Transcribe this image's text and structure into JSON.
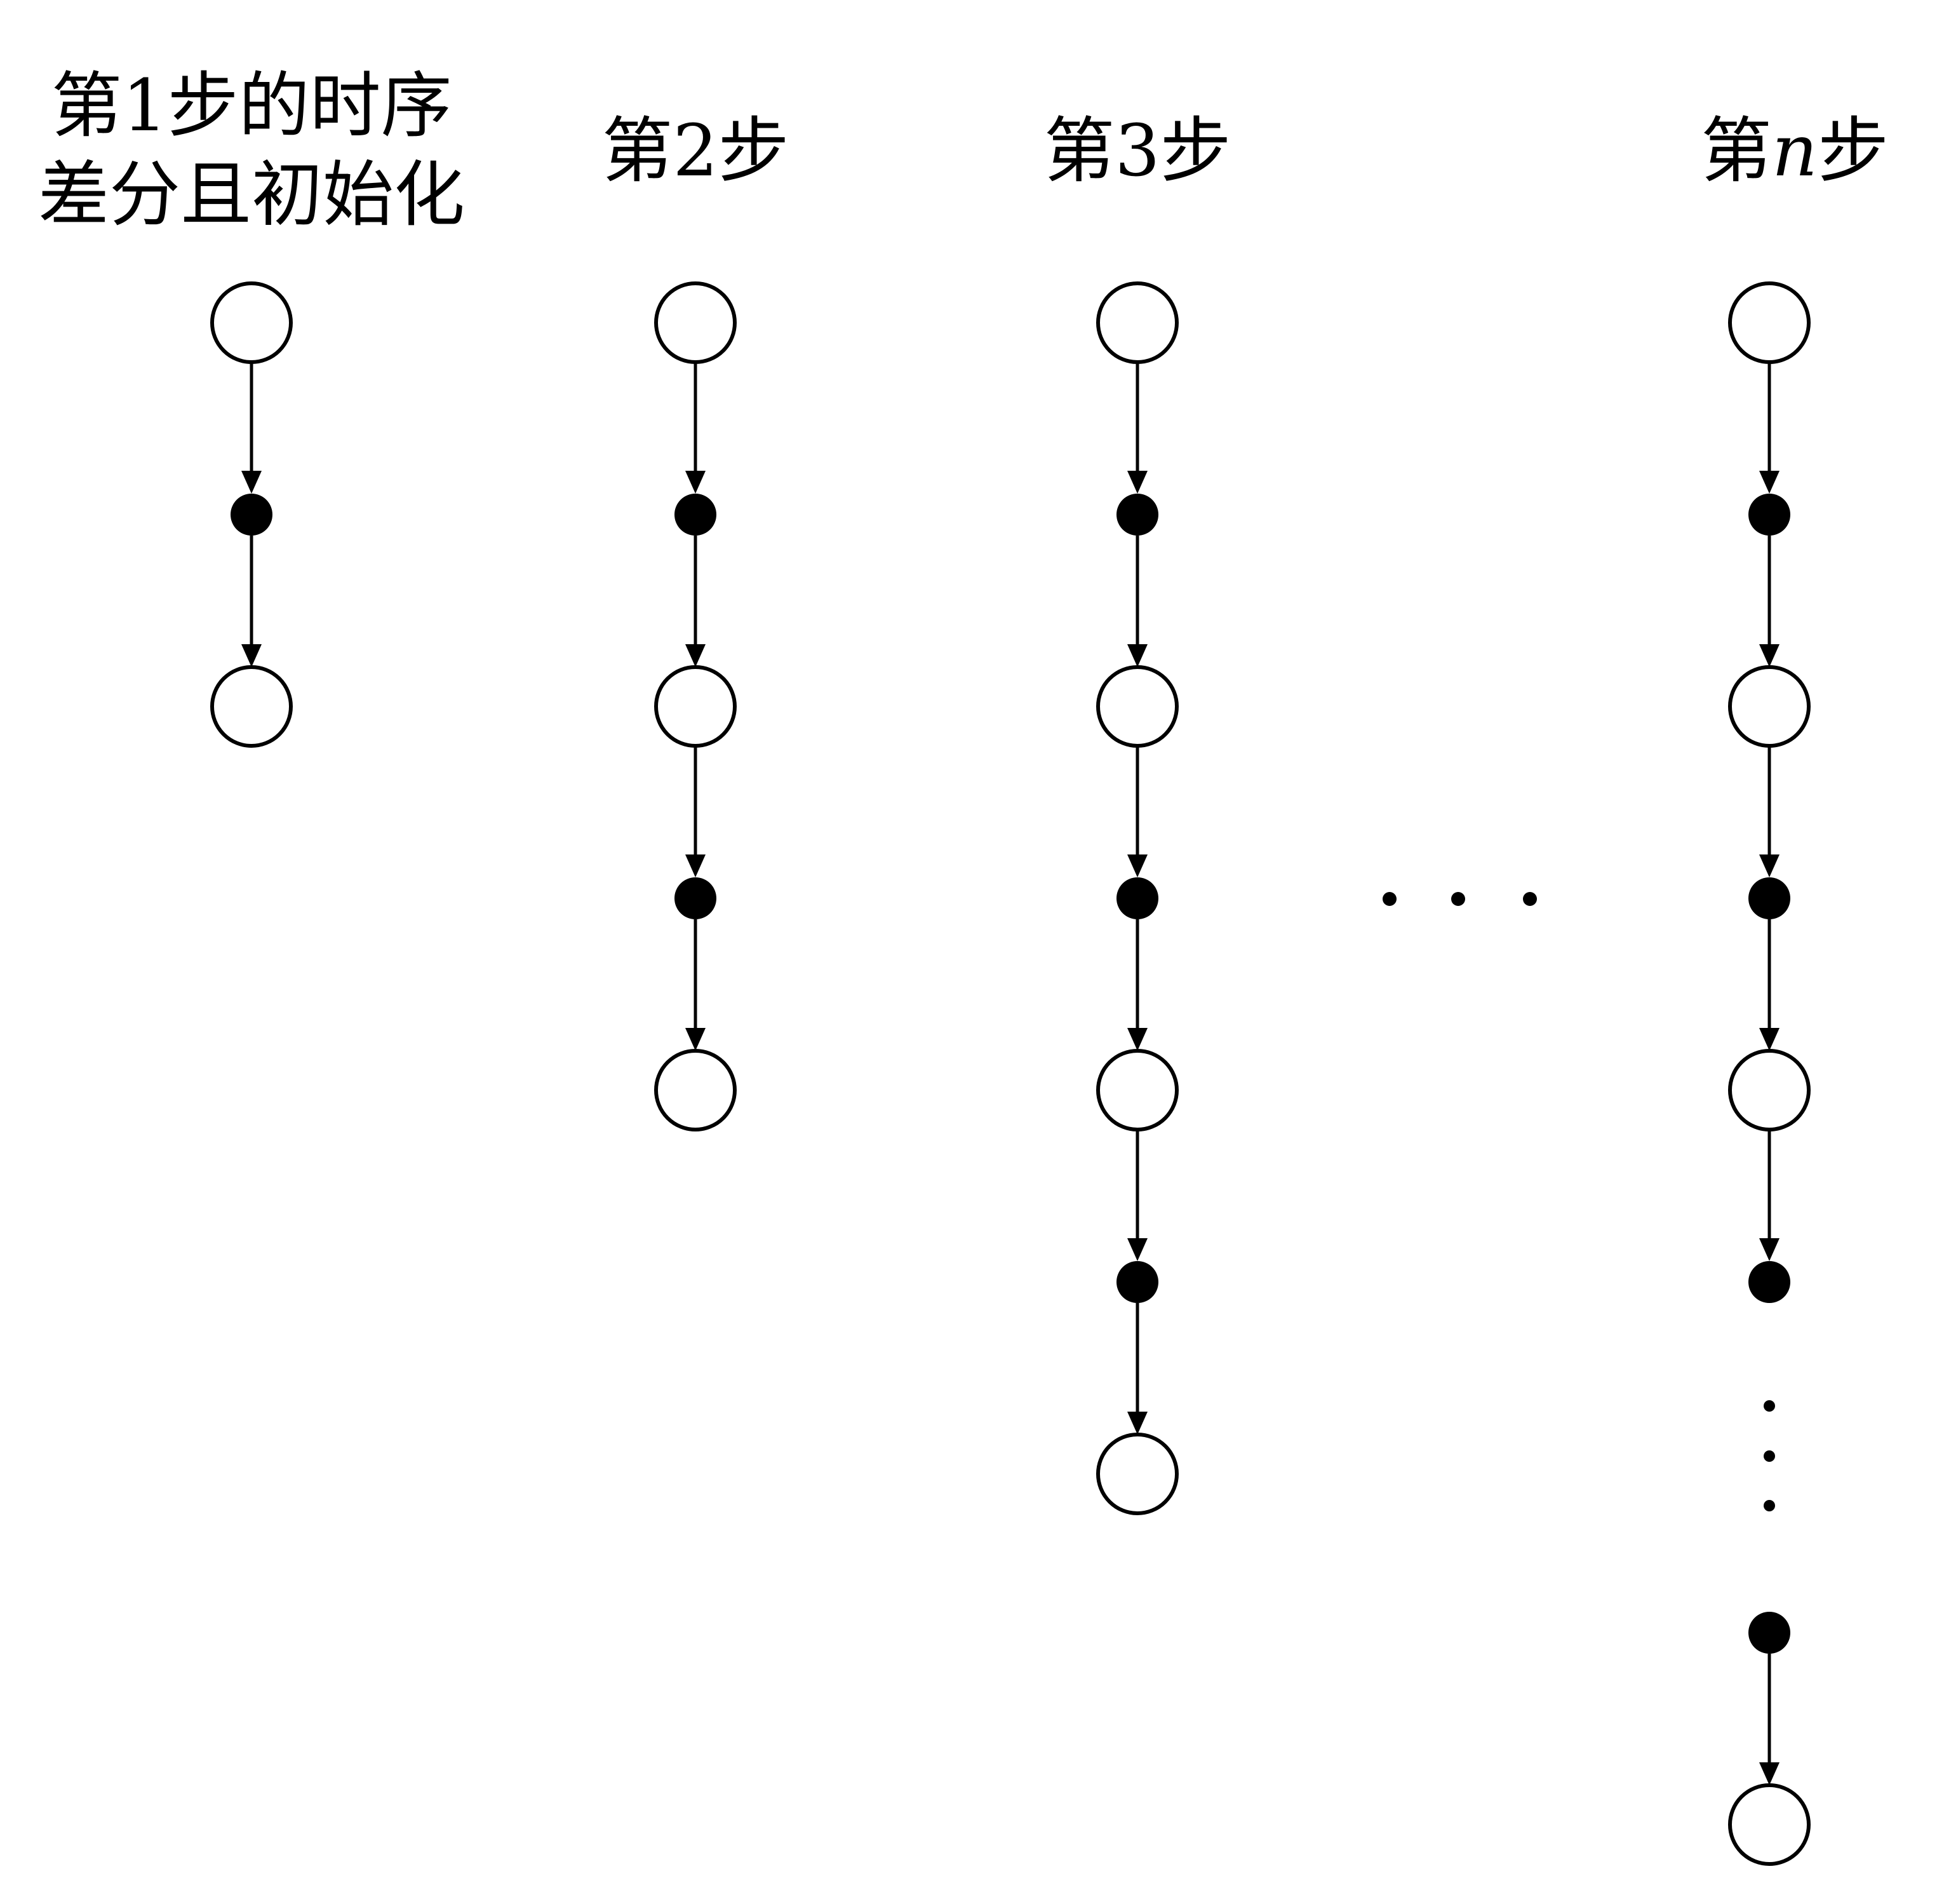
{
  "columns": [
    {
      "title_lines": [
        "第1步的时序",
        "差分且初始化"
      ],
      "nodes": [
        "open",
        "filled",
        "open"
      ]
    },
    {
      "title_lines": [
        "第2步"
      ],
      "nodes": [
        "open",
        "filled",
        "open",
        "filled",
        "open"
      ]
    },
    {
      "title_lines": [
        "第3步"
      ],
      "nodes": [
        "open",
        "filled",
        "open",
        "filled",
        "open",
        "filled",
        "open"
      ]
    },
    {
      "title_prefix": "第",
      "title_var": "n",
      "title_suffix": "步",
      "nodes": [
        "open",
        "filled",
        "open",
        "filled",
        "open",
        "filled",
        "vertical-ellipsis",
        "filled",
        "open"
      ]
    }
  ],
  "between_columns_ellipsis": "horizontal-ellipsis",
  "colors": {
    "stroke": "#000000",
    "fill_open": "#ffffff",
    "fill_filled": "#000000"
  }
}
